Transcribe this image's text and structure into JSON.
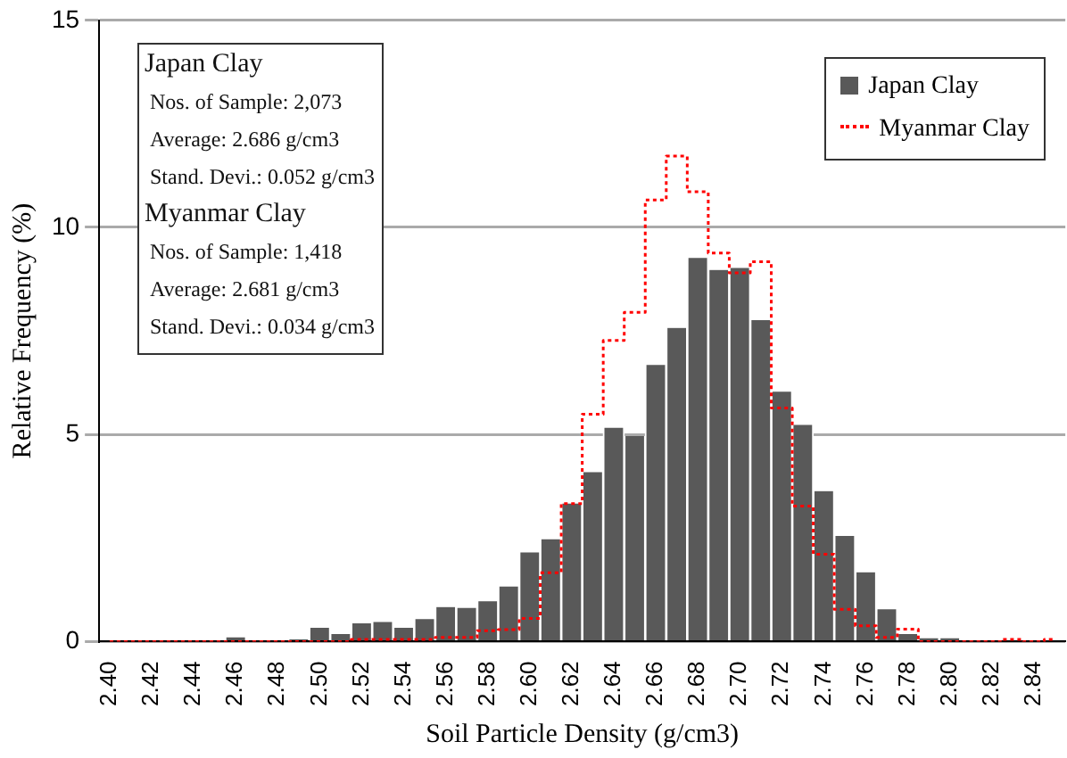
{
  "chart_data": {
    "type": "histogram",
    "xlabel": "Soil Particle Density (g/cm3)",
    "ylabel": "Relative Frequency (%)",
    "bins": [
      2.395,
      2.405,
      2.415,
      2.425,
      2.435,
      2.445,
      2.455,
      2.465,
      2.475,
      2.485,
      2.495,
      2.505,
      2.515,
      2.525,
      2.535,
      2.545,
      2.555,
      2.565,
      2.575,
      2.585,
      2.595,
      2.605,
      2.615,
      2.625,
      2.635,
      2.645,
      2.655,
      2.665,
      2.675,
      2.685,
      2.695,
      2.705,
      2.715,
      2.725,
      2.735,
      2.745,
      2.755,
      2.765,
      2.775,
      2.785,
      2.795,
      2.805,
      2.815,
      2.825,
      2.835,
      2.845,
      2.855
    ],
    "series": [
      {
        "name": "Japan Clay",
        "color": "#595959",
        "values": [
          0,
          0,
          0,
          0,
          0.03,
          0.03,
          0.1,
          0,
          0,
          0.05,
          0.33,
          0.18,
          0.44,
          0.47,
          0.33,
          0.54,
          0.83,
          0.81,
          0.97,
          1.33,
          2.15,
          2.47,
          3.33,
          4.09,
          5.16,
          4.96,
          6.68,
          7.57,
          9.26,
          8.97,
          9.02,
          7.76,
          6.03,
          5.23,
          3.63,
          2.55,
          1.67,
          0.78,
          0.18,
          0.08,
          0.08,
          0,
          0,
          0,
          0,
          0
        ]
      },
      {
        "name": "Myanmar Clay",
        "type": "step",
        "line_style": "dotted",
        "color": "#ff0000",
        "x": [
          2.4,
          2.41,
          2.42,
          2.43,
          2.44,
          2.45,
          2.46,
          2.47,
          2.48,
          2.49,
          2.5,
          2.51,
          2.52,
          2.53,
          2.54,
          2.55,
          2.56,
          2.57,
          2.58,
          2.59,
          2.6,
          2.61,
          2.62,
          2.63,
          2.64,
          2.65,
          2.66,
          2.67,
          2.68,
          2.69,
          2.7,
          2.71,
          2.72,
          2.73,
          2.74,
          2.75,
          2.76,
          2.77,
          2.78,
          2.79,
          2.8,
          2.81,
          2.82,
          2.83,
          2.84,
          2.85
        ],
        "values": [
          0,
          0,
          0,
          0,
          0,
          0,
          0,
          0,
          0,
          0,
          0,
          0,
          0.05,
          0.05,
          0.05,
          0.05,
          0.1,
          0.1,
          0.26,
          0.29,
          0.56,
          1.66,
          3.33,
          5.49,
          7.27,
          7.95,
          10.66,
          11.72,
          10.86,
          9.38,
          8.9,
          9.17,
          5.64,
          3.27,
          2.11,
          0.78,
          0.38,
          0.1,
          0.3,
          0,
          0,
          0,
          0,
          0.05,
          0,
          0.05
        ]
      }
    ],
    "xlim": [
      2.395,
      2.855
    ],
    "xticks": [
      {
        "value": 2.4,
        "label": "2.40"
      },
      2.42,
      2.44,
      2.46,
      2.48,
      {
        "value": 2.5,
        "label": "2.50"
      },
      2.52,
      2.54,
      2.56,
      2.58,
      {
        "value": 2.6,
        "label": "2.60"
      },
      2.62,
      2.64,
      2.66,
      2.68,
      {
        "value": 2.7,
        "label": "2.70"
      },
      2.72,
      2.74,
      2.76,
      2.78,
      {
        "value": 2.8,
        "label": "2.80"
      },
      2.82,
      2.84
    ],
    "ylim": [
      0,
      15
    ],
    "yticks": [
      0,
      5,
      10,
      15
    ],
    "grid": "y",
    "legend": "top right",
    "annotations": [
      "Japan Clay",
      "Nos. of Sample: 2,073",
      "Average: 2.686 g/cm3",
      "Stand. Devi.: 0.052 g/cm3",
      "Myanmar Clay",
      "Nos. of Sample: 1,418",
      "Average: 2.681 g/cm3",
      "Stand. Devi.: 0.034 g/cm3"
    ]
  }
}
